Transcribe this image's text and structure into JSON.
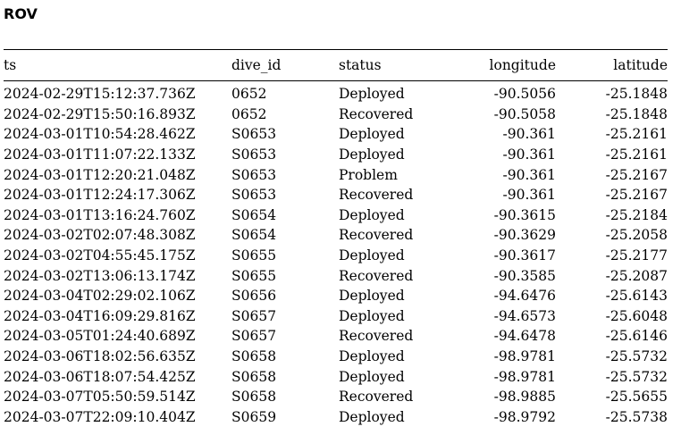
{
  "title": "ROV",
  "table": {
    "columns": [
      "ts",
      "dive_id",
      "status",
      "longitude",
      "latitude"
    ],
    "rows": [
      [
        "2024-02-29T15:12:37.736Z",
        "0652",
        "Deployed",
        "-90.5056",
        "-25.1848"
      ],
      [
        "2024-02-29T15:50:16.893Z",
        "0652",
        "Recovered",
        "-90.5058",
        "-25.1848"
      ],
      [
        "2024-03-01T10:54:28.462Z",
        "S0653",
        "Deployed",
        "-90.361",
        "-25.2161"
      ],
      [
        "2024-03-01T11:07:22.133Z",
        "S0653",
        "Deployed",
        "-90.361",
        "-25.2161"
      ],
      [
        "2024-03-01T12:20:21.048Z",
        "S0653",
        "Problem",
        "-90.361",
        "-25.2167"
      ],
      [
        "2024-03-01T12:24:17.306Z",
        "S0653",
        "Recovered",
        "-90.361",
        "-25.2167"
      ],
      [
        "2024-03-01T13:16:24.760Z",
        "S0654",
        "Deployed",
        "-90.3615",
        "-25.2184"
      ],
      [
        "2024-03-02T02:07:48.308Z",
        "S0654",
        "Recovered",
        "-90.3629",
        "-25.2058"
      ],
      [
        "2024-03-02T04:55:45.175Z",
        "S0655",
        "Deployed",
        "-90.3617",
        "-25.2177"
      ],
      [
        "2024-03-02T13:06:13.174Z",
        "S0655",
        "Recovered",
        "-90.3585",
        "-25.2087"
      ],
      [
        "2024-03-04T02:29:02.106Z",
        "S0656",
        "Deployed",
        "-94.6476",
        "-25.6143"
      ],
      [
        "2024-03-04T16:09:29.816Z",
        "S0657",
        "Deployed",
        "-94.6573",
        "-25.6048"
      ],
      [
        "2024-03-05T01:24:40.689Z",
        "S0657",
        "Recovered",
        "-94.6478",
        "-25.6146"
      ],
      [
        "2024-03-06T18:02:56.635Z",
        "S0658",
        "Deployed",
        "-98.9781",
        "-25.5732"
      ],
      [
        "2024-03-06T18:07:54.425Z",
        "S0658",
        "Deployed",
        "-98.9781",
        "-25.5732"
      ],
      [
        "2024-03-07T05:50:59.514Z",
        "S0658",
        "Recovered",
        "-98.9885",
        "-25.5655"
      ],
      [
        "2024-03-07T22:09:10.404Z",
        "S0659",
        "Deployed",
        "-98.9792",
        "-25.5738"
      ]
    ]
  }
}
